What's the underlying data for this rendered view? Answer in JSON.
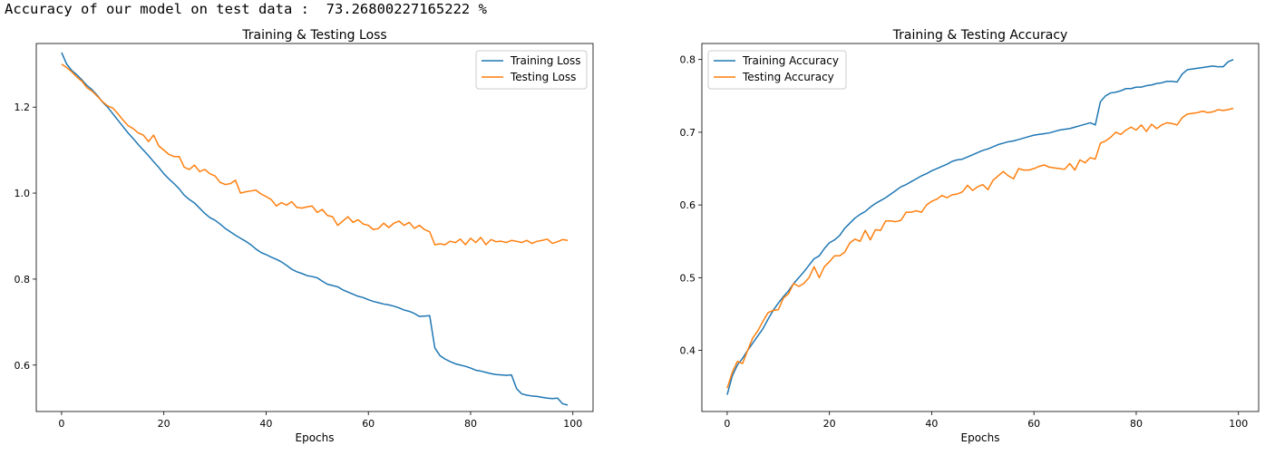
{
  "console": {
    "output_line": "Accuracy of our model on test data :  73.26800227165222 %"
  },
  "colors": {
    "training": "#1f77b4",
    "testing": "#ff7f0e"
  },
  "chart_data": [
    {
      "type": "line",
      "title": "Training & Testing Loss",
      "xlabel": "Epochs",
      "ylabel": "",
      "xlim": [
        -4.95,
        103.95
      ],
      "ylim": [
        0.492,
        1.348
      ],
      "xticks": [
        0,
        20,
        40,
        60,
        80,
        100
      ],
      "yticks": [
        0.6,
        0.8,
        1.0,
        1.2
      ],
      "ytick_labels": [
        "0.6",
        "0.8",
        "1.0",
        "1.2"
      ],
      "legend_position": "upper right",
      "grid": false,
      "series": [
        {
          "name": "Training Loss",
          "color": "#1f77b4",
          "values": [
            1.327,
            1.3,
            1.285,
            1.275,
            1.263,
            1.25,
            1.24,
            1.227,
            1.212,
            1.2,
            1.185,
            1.17,
            1.155,
            1.14,
            1.127,
            1.113,
            1.1,
            1.087,
            1.073,
            1.06,
            1.045,
            1.033,
            1.022,
            1.01,
            0.995,
            0.985,
            0.977,
            0.965,
            0.953,
            0.943,
            0.937,
            0.928,
            0.918,
            0.91,
            0.902,
            0.895,
            0.888,
            0.88,
            0.87,
            0.862,
            0.857,
            0.851,
            0.846,
            0.84,
            0.832,
            0.823,
            0.817,
            0.813,
            0.808,
            0.806,
            0.803,
            0.795,
            0.788,
            0.785,
            0.782,
            0.775,
            0.77,
            0.765,
            0.76,
            0.757,
            0.752,
            0.748,
            0.745,
            0.742,
            0.74,
            0.737,
            0.733,
            0.728,
            0.725,
            0.72,
            0.713,
            0.714,
            0.715,
            0.64,
            0.622,
            0.614,
            0.608,
            0.603,
            0.6,
            0.597,
            0.593,
            0.588,
            0.586,
            0.583,
            0.58,
            0.578,
            0.577,
            0.576,
            0.577,
            0.545,
            0.533,
            0.53,
            0.528,
            0.527,
            0.525,
            0.523,
            0.522,
            0.523,
            0.51,
            0.507
          ]
        },
        {
          "name": "Testing Loss",
          "color": "#ff7f0e",
          "values": [
            1.3,
            1.292,
            1.282,
            1.27,
            1.26,
            1.245,
            1.237,
            1.225,
            1.213,
            1.203,
            1.198,
            1.185,
            1.17,
            1.157,
            1.15,
            1.14,
            1.135,
            1.12,
            1.135,
            1.11,
            1.1,
            1.09,
            1.085,
            1.085,
            1.06,
            1.055,
            1.065,
            1.05,
            1.055,
            1.045,
            1.04,
            1.025,
            1.02,
            1.022,
            1.03,
            1.0,
            1.003,
            1.005,
            1.007,
            0.998,
            0.992,
            0.985,
            0.97,
            0.978,
            0.972,
            0.98,
            0.967,
            0.965,
            0.968,
            0.97,
            0.955,
            0.962,
            0.948,
            0.945,
            0.925,
            0.935,
            0.945,
            0.932,
            0.938,
            0.928,
            0.925,
            0.915,
            0.918,
            0.93,
            0.92,
            0.93,
            0.935,
            0.925,
            0.932,
            0.918,
            0.925,
            0.915,
            0.91,
            0.88,
            0.882,
            0.88,
            0.888,
            0.885,
            0.893,
            0.88,
            0.895,
            0.885,
            0.897,
            0.88,
            0.892,
            0.887,
            0.888,
            0.885,
            0.89,
            0.888,
            0.885,
            0.89,
            0.883,
            0.888,
            0.89,
            0.893,
            0.883,
            0.887,
            0.892,
            0.89
          ]
        }
      ]
    },
    {
      "type": "line",
      "title": "Training & Testing Accuracy",
      "xlabel": "Epochs",
      "ylabel": "",
      "xlim": [
        -4.95,
        103.95
      ],
      "ylim": [
        0.316,
        0.822
      ],
      "xticks": [
        0,
        20,
        40,
        60,
        80,
        100
      ],
      "yticks": [
        0.4,
        0.5,
        0.6,
        0.7,
        0.8
      ],
      "ytick_labels": [
        "0.4",
        "0.5",
        "0.6",
        "0.7",
        "0.8"
      ],
      "legend_position": "upper left",
      "grid": false,
      "series": [
        {
          "name": "Training Accuracy",
          "color": "#1f77b4",
          "values": [
            0.339,
            0.365,
            0.38,
            0.389,
            0.4,
            0.41,
            0.42,
            0.43,
            0.443,
            0.455,
            0.465,
            0.474,
            0.482,
            0.492,
            0.5,
            0.508,
            0.517,
            0.526,
            0.53,
            0.54,
            0.548,
            0.552,
            0.558,
            0.568,
            0.575,
            0.582,
            0.587,
            0.591,
            0.597,
            0.602,
            0.606,
            0.61,
            0.615,
            0.62,
            0.625,
            0.628,
            0.632,
            0.636,
            0.64,
            0.643,
            0.647,
            0.65,
            0.653,
            0.656,
            0.66,
            0.662,
            0.663,
            0.666,
            0.669,
            0.672,
            0.675,
            0.677,
            0.68,
            0.683,
            0.685,
            0.687,
            0.688,
            0.69,
            0.692,
            0.694,
            0.696,
            0.697,
            0.698,
            0.699,
            0.701,
            0.703,
            0.704,
            0.705,
            0.707,
            0.709,
            0.711,
            0.713,
            0.71,
            0.742,
            0.75,
            0.754,
            0.755,
            0.757,
            0.76,
            0.76,
            0.762,
            0.762,
            0.764,
            0.765,
            0.767,
            0.768,
            0.77,
            0.77,
            0.769,
            0.78,
            0.786,
            0.787,
            0.788,
            0.789,
            0.79,
            0.791,
            0.79,
            0.79,
            0.797,
            0.8
          ]
        },
        {
          "name": "Testing Accuracy",
          "color": "#ff7f0e",
          "values": [
            0.348,
            0.37,
            0.385,
            0.382,
            0.4,
            0.417,
            0.427,
            0.44,
            0.452,
            0.455,
            0.456,
            0.472,
            0.478,
            0.492,
            0.488,
            0.492,
            0.5,
            0.515,
            0.5,
            0.515,
            0.522,
            0.53,
            0.53,
            0.535,
            0.548,
            0.553,
            0.55,
            0.565,
            0.552,
            0.566,
            0.565,
            0.578,
            0.578,
            0.577,
            0.579,
            0.59,
            0.59,
            0.592,
            0.59,
            0.6,
            0.605,
            0.608,
            0.613,
            0.61,
            0.614,
            0.615,
            0.618,
            0.627,
            0.62,
            0.625,
            0.628,
            0.621,
            0.634,
            0.64,
            0.646,
            0.64,
            0.636,
            0.65,
            0.648,
            0.648,
            0.65,
            0.653,
            0.655,
            0.652,
            0.651,
            0.65,
            0.649,
            0.657,
            0.648,
            0.662,
            0.658,
            0.665,
            0.663,
            0.685,
            0.688,
            0.693,
            0.7,
            0.697,
            0.703,
            0.707,
            0.703,
            0.71,
            0.701,
            0.711,
            0.705,
            0.71,
            0.713,
            0.712,
            0.71,
            0.72,
            0.725,
            0.726,
            0.727,
            0.729,
            0.727,
            0.728,
            0.731,
            0.73,
            0.731,
            0.733
          ]
        }
      ]
    }
  ]
}
